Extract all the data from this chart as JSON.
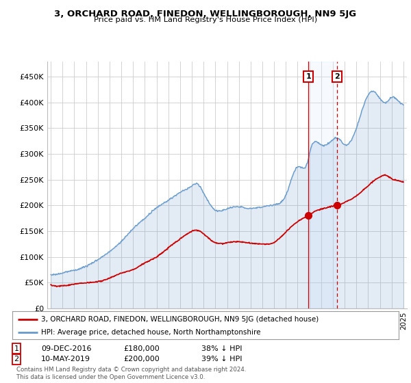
{
  "title": "3, ORCHARD ROAD, FINEDON, WELLINGBOROUGH, NN9 5JG",
  "subtitle": "Price paid vs. HM Land Registry's House Price Index (HPI)",
  "hpi_color": "#6699cc",
  "hpi_fill_color": "#ddeeff",
  "price_color": "#cc0000",
  "shade_color": "#ddeeff",
  "background_color": "#ffffff",
  "grid_color": "#cccccc",
  "ytick_labels": [
    "£0",
    "£50K",
    "£100K",
    "£150K",
    "£200K",
    "£250K",
    "£300K",
    "£350K",
    "£400K",
    "£450K"
  ],
  "yticks": [
    0,
    50000,
    100000,
    150000,
    200000,
    250000,
    300000,
    350000,
    400000,
    450000
  ],
  "xlim_start": 1994.7,
  "xlim_end": 2025.3,
  "ylim": [
    0,
    480000
  ],
  "sale1_year": 2016.93,
  "sale1_price": 180000,
  "sale2_year": 2019.36,
  "sale2_price": 200000,
  "legend_line1": "3, ORCHARD ROAD, FINEDON, WELLINGBOROUGH, NN9 5JG (detached house)",
  "legend_line2": "HPI: Average price, detached house, North Northamptonshire",
  "footnote": "Contains HM Land Registry data © Crown copyright and database right 2024.\nThis data is licensed under the Open Government Licence v3.0.",
  "table_row1": [
    "1",
    "09-DEC-2016",
    "£180,000",
    "38% ↓ HPI"
  ],
  "table_row2": [
    "2",
    "10-MAY-2019",
    "£200,000",
    "39% ↓ HPI"
  ]
}
